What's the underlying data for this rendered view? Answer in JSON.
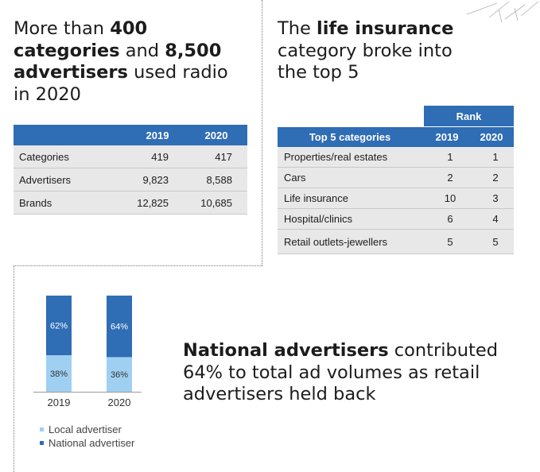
{
  "headline_left": {
    "p1": "More than ",
    "b1": "400",
    "b2": "categories",
    "p2": " and ",
    "b3": "8,500",
    "b4": "advertisers",
    "p3": " used radio",
    "p4": "in 2020"
  },
  "headline_right": {
    "p1": "The ",
    "b1": "life insurance",
    "p2": "category broke into",
    "p3": "the top 5"
  },
  "headline_bottom": {
    "b1": "National advertisers",
    "p1": " contributed",
    "p2": "64% to total ad volumes as retail",
    "p3": "advertisers held back"
  },
  "colors": {
    "header_blue": "#2f6db5",
    "national": "#2f6db5",
    "local": "#9fd0f2",
    "shade": "#e8e8e8"
  },
  "table_left": {
    "columns": [
      "2019",
      "2020"
    ],
    "rows": [
      {
        "label": "Categories",
        "y2019": "419",
        "y2020": "417"
      },
      {
        "label": "Advertisers",
        "y2019": "9,823",
        "y2020": "8,588"
      },
      {
        "label": "Brands",
        "y2019": "12,825",
        "y2020": "10,685"
      }
    ]
  },
  "table_right": {
    "rank_label": "Rank",
    "header_label": "Top 5 categories",
    "columns": [
      "2019",
      "2020"
    ],
    "rows": [
      {
        "label": "Properties/real estates",
        "y2019": "1",
        "y2020": "1"
      },
      {
        "label": "Cars",
        "y2019": "2",
        "y2020": "2"
      },
      {
        "label": "Life insurance",
        "y2019": "10",
        "y2020": "3"
      },
      {
        "label": "Hospital/clinics",
        "y2019": "6",
        "y2020": "4"
      },
      {
        "label": "Retail outlets-jewellers",
        "y2019": "5",
        "y2020": "5"
      }
    ]
  },
  "chart_data": {
    "type": "bar",
    "stacked": true,
    "categories": [
      "2019",
      "2020"
    ],
    "series": [
      {
        "name": "Local advertiser",
        "values": [
          38,
          36
        ],
        "labels": [
          "38%",
          "36%"
        ]
      },
      {
        "name": "National advertiser",
        "values": [
          62,
          64
        ],
        "labels": [
          "62%",
          "64%"
        ]
      }
    ],
    "ylim": [
      0,
      100
    ],
    "title": "",
    "xlabel": "",
    "ylabel": "",
    "legend": [
      "Local advertiser",
      "National advertiser"
    ],
    "legend_position": "bottom-left"
  }
}
